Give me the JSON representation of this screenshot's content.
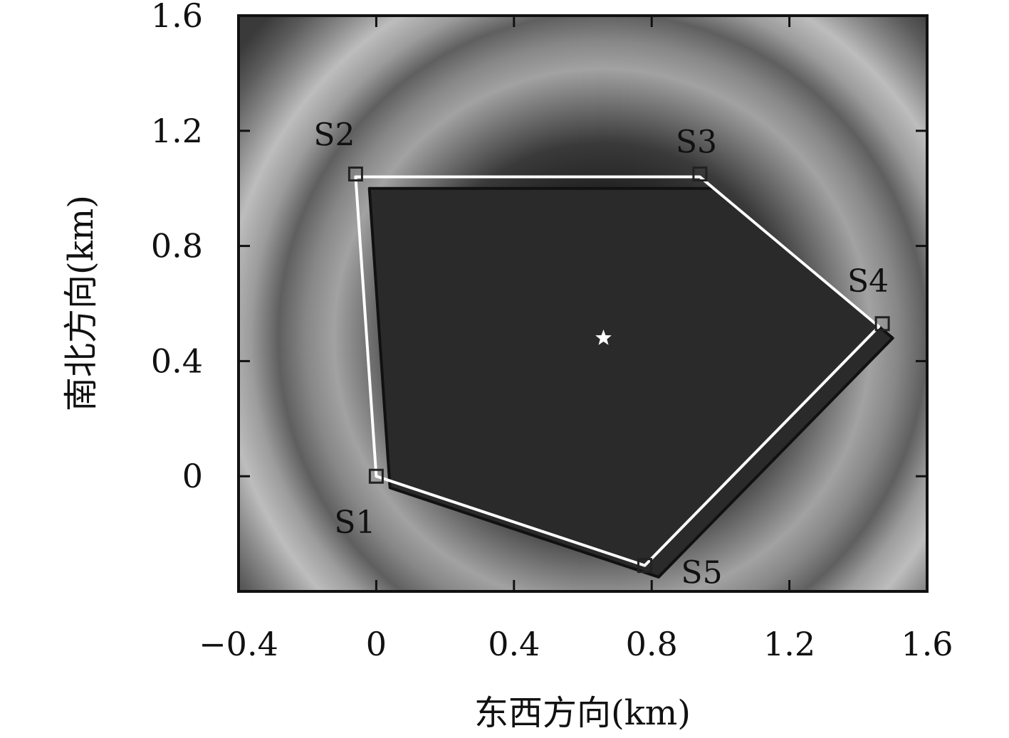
{
  "chart_data": {
    "type": "scatter",
    "xlabel": "东西方向(km)",
    "ylabel": "南北方向(km)",
    "xlim": [
      -0.4,
      1.6
    ],
    "ylim": [
      -0.4,
      1.6
    ],
    "x_ticks": [
      -0.4,
      0,
      0.4,
      0.8,
      1.2,
      1.6
    ],
    "y_ticks": [
      0,
      0.4,
      0.8,
      1.2,
      1.6
    ],
    "x_tick_labels": [
      "−0.4",
      "0",
      "0.4",
      "0.8",
      "1.2",
      "1.6"
    ],
    "y_tick_labels": [
      "0",
      "0.4",
      "0.8",
      "1.2",
      "1.6"
    ],
    "stations": [
      {
        "name": "S1",
        "x": 0.0,
        "y": 0.0
      },
      {
        "name": "S2",
        "x": -0.06,
        "y": 1.05
      },
      {
        "name": "S3",
        "x": 0.94,
        "y": 1.05
      },
      {
        "name": "S4",
        "x": 1.47,
        "y": 0.53
      },
      {
        "name": "S5",
        "x": 0.78,
        "y": -0.31
      }
    ],
    "white_polygon": [
      {
        "x": 0.0,
        "y": 0.0
      },
      {
        "x": -0.06,
        "y": 1.04
      },
      {
        "x": 0.94,
        "y": 1.04
      },
      {
        "x": 1.46,
        "y": 0.52
      },
      {
        "x": 0.78,
        "y": -0.31
      }
    ],
    "black_polygon": [
      {
        "x": 0.04,
        "y": -0.04
      },
      {
        "x": -0.02,
        "y": 1.0
      },
      {
        "x": 0.98,
        "y": 1.0
      },
      {
        "x": 1.5,
        "y": 0.48
      },
      {
        "x": 0.82,
        "y": -0.35
      }
    ],
    "source": {
      "x": 0.66,
      "y": 0.48,
      "marker": "star"
    },
    "background": {
      "type": "heatmap",
      "colormap": "grayscale",
      "pattern": "concentric rings centered on source"
    },
    "colors": {
      "white_polygon": "#ffffff",
      "black_polygon": "#111111",
      "polygon_fill": "#2a2a2a",
      "station_marker": "#222222",
      "source_marker": "#ffffff"
    },
    "grid": false
  }
}
